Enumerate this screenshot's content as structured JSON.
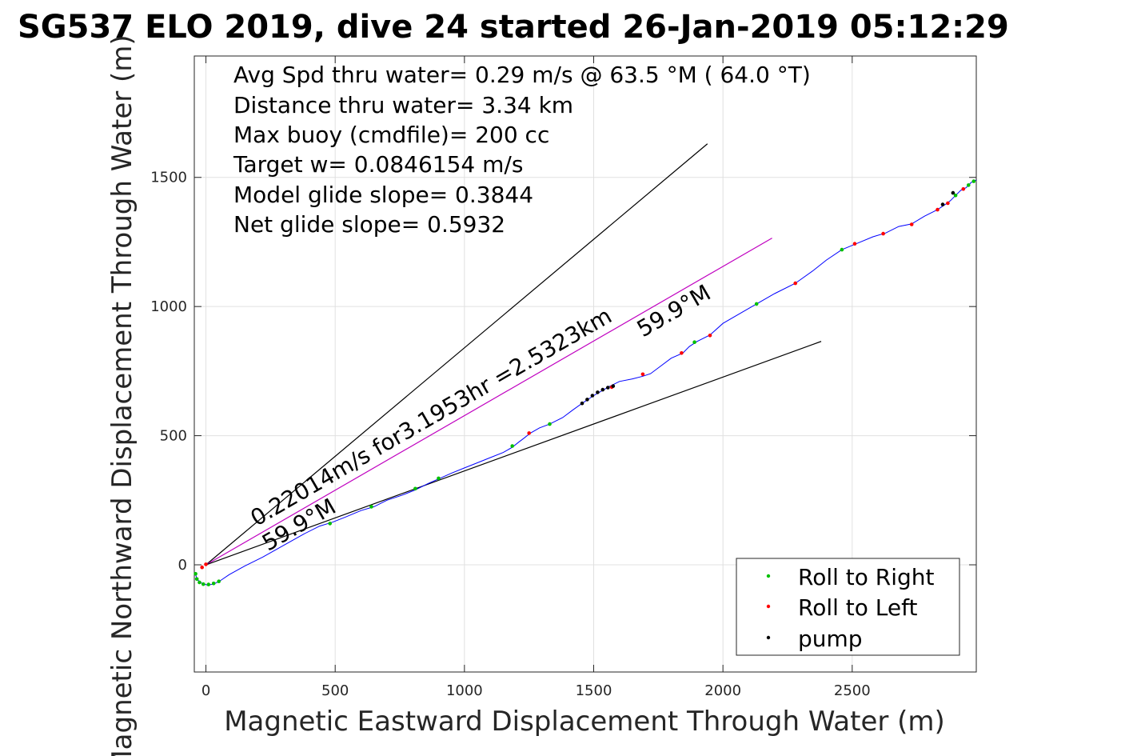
{
  "chart_data": {
    "type": "line",
    "title": "SG537 ELO 2019, dive 24 started 26-Jan-2019 05:12:29",
    "xlabel": "Magnetic Eastward Displacement Through Water (m)",
    "ylabel": "Magnetic Northward Displacement Through Water (m)",
    "xlim": [
      -45,
      2980
    ],
    "ylim": [
      -415,
      1970
    ],
    "xticks": [
      0,
      500,
      1000,
      1500,
      2000,
      2500
    ],
    "yticks": [
      0,
      500,
      1000,
      1500
    ],
    "grid": true,
    "summary_lines": [
      "Avg Spd thru water=  0.29 m/s @  63.5 °M ( 64.0 °T)",
      "Distance thru water=  3.34 km",
      "Max buoy (cmdfile)= 200 cc",
      "Target w= 0.0846154 m/s",
      "Model glide slope= 0.3844",
      "Net glide slope= 0.5932"
    ],
    "reference_lines": [
      {
        "name": "upper-bound",
        "color": "#000000",
        "x": [
          0,
          1940
        ],
        "y": [
          0,
          1630
        ]
      },
      {
        "name": "mean-heading",
        "color": "#c000c0",
        "x": [
          0,
          2190
        ],
        "y": [
          0,
          1265
        ]
      },
      {
        "name": "lower-bound",
        "color": "#000000",
        "x": [
          0,
          2380
        ],
        "y": [
          0,
          865
        ]
      }
    ],
    "annotations": [
      {
        "text": "0.22014m/s for3.1953hr =2.5323km",
        "x": 195,
        "y": 148,
        "angle_deg": 30
      },
      {
        "text": "59.9°M",
        "x": 240,
        "y": 52,
        "angle_deg": 30
      },
      {
        "text": "59.9°M",
        "x": 1690,
        "y": 880,
        "angle_deg": 30
      }
    ],
    "series": [
      {
        "name": "",
        "color": "#0000ff",
        "x": [
          -40,
          -38,
          -30,
          -15,
          5,
          30,
          55,
          90,
          150,
          220,
          300,
          380,
          440,
          490,
          540,
          600,
          650,
          700,
          760,
          810,
          860,
          905,
          950,
          1000,
          1050,
          1100,
          1150,
          1185,
          1210,
          1230,
          1255,
          1290,
          1330,
          1380,
          1420,
          1455,
          1500,
          1560,
          1600,
          1650,
          1690,
          1720,
          1760,
          1800,
          1845,
          1870,
          1900,
          1950,
          2000,
          2060,
          2130,
          2200,
          2280,
          2350,
          2400,
          2460,
          2520,
          2580,
          2630,
          2680,
          2730,
          2780,
          2830,
          2860,
          2880,
          2900,
          2920,
          2940,
          2960,
          2980
        ],
        "y": [
          -30,
          -45,
          -60,
          -72,
          -78,
          -75,
          -62,
          -38,
          -5,
          30,
          75,
          120,
          150,
          165,
          185,
          210,
          225,
          250,
          270,
          290,
          315,
          335,
          355,
          375,
          395,
          415,
          435,
          455,
          475,
          490,
          510,
          530,
          545,
          570,
          600,
          625,
          655,
          690,
          710,
          720,
          730,
          740,
          770,
          800,
          820,
          845,
          865,
          890,
          935,
          970,
          1010,
          1050,
          1090,
          1140,
          1180,
          1220,
          1245,
          1270,
          1285,
          1310,
          1320,
          1350,
          1375,
          1395,
          1410,
          1430,
          1450,
          1460,
          1480,
          1490
        ]
      },
      {
        "name": "Roll to Right",
        "color": "#00c000",
        "x": [
          -40,
          -35,
          -25,
          -10,
          10,
          30,
          50,
          480,
          640,
          810,
          900,
          1185,
          1330,
          1890,
          2130,
          2460,
          2900,
          2950,
          2970
        ],
        "y": [
          -35,
          -55,
          -68,
          -75,
          -76,
          -72,
          -64,
          160,
          225,
          295,
          335,
          460,
          545,
          862,
          1010,
          1220,
          1430,
          1470,
          1485
        ]
      },
      {
        "name": "Roll to Left",
        "color": "#ff0000",
        "x": [
          -15,
          0,
          1250,
          1570,
          1690,
          1840,
          1950,
          2280,
          2510,
          2620,
          2730,
          2830,
          2870,
          2930
        ],
        "y": [
          -10,
          2,
          510,
          688,
          738,
          820,
          888,
          1090,
          1243,
          1282,
          1318,
          1375,
          1400,
          1455
        ]
      },
      {
        "name": "pump",
        "color": "#000000",
        "x": [
          1455,
          1475,
          1495,
          1515,
          1535,
          1555,
          1575,
          2850,
          2890
        ],
        "y": [
          625,
          640,
          655,
          668,
          678,
          686,
          692,
          1395,
          1440
        ]
      }
    ],
    "legend": {
      "placement": "bottom-right",
      "entries": [
        {
          "label": "Roll to Right",
          "color": "#00c000"
        },
        {
          "label": "Roll to Left",
          "color": "#ff0000"
        },
        {
          "label": "pump",
          "color": "#000000"
        }
      ]
    }
  }
}
